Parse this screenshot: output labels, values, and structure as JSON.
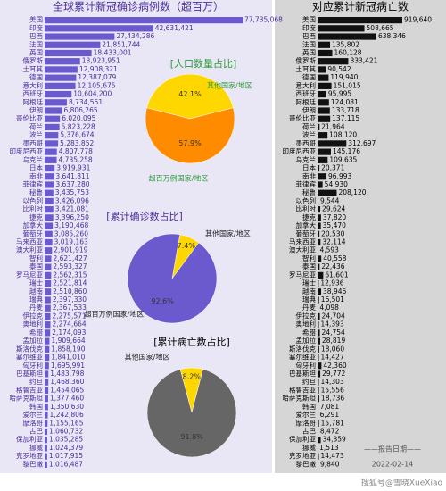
{
  "chart_data": [
    {
      "type": "barh",
      "title": "全球累计新冠确诊病例数（超百万）",
      "color": "#6a5acd",
      "categories": [
        "美国",
        "印度",
        "巴西",
        "法国",
        "英国",
        "俄罗斯",
        "土耳其",
        "德国",
        "意大利",
        "西班牙",
        "阿根廷",
        "伊朗",
        "哥伦比亚",
        "荷兰",
        "波兰",
        "墨西哥",
        "印度尼西亚",
        "乌克兰",
        "日本",
        "南非",
        "菲律宾",
        "秘鲁",
        "以色列",
        "比利时",
        "捷克",
        "加拿大",
        "葡萄牙",
        "马来西亚",
        "澳大利亚",
        "智利",
        "泰国",
        "罗马尼亚",
        "瑞士",
        "越南",
        "瑞典",
        "丹麦",
        "伊拉克",
        "奥地利",
        "希腊",
        "孟加拉",
        "斯洛伐克",
        "塞尔维亚",
        "匈牙利",
        "巴基斯坦",
        "约旦",
        "格鲁吉亚",
        "哈萨克斯坦",
        "韩国",
        "爱尔兰",
        "摩洛哥",
        "古巴",
        "保加利亚",
        "挪威",
        "克罗地亚",
        "黎巴嫩"
      ],
      "values": [
        77735068,
        42631421,
        27434286,
        21851744,
        18433001,
        13923951,
        12908321,
        12387079,
        12105675,
        10604200,
        8734551,
        6806265,
        6020095,
        5823228,
        5376674,
        5283852,
        4807778,
        4735258,
        3919931,
        3641811,
        3637280,
        3435753,
        3426096,
        3421081,
        3396250,
        3190468,
        3085260,
        3019163,
        2901919,
        2621427,
        2593327,
        2562315,
        2521814,
        2510860,
        2397330,
        2367533,
        2275571,
        2274664,
        2174093,
        1909664,
        1858190,
        1841010,
        1695991,
        1483798,
        1468360,
        1454065,
        1377460,
        1350630,
        1242806,
        1155165,
        1060732,
        1035285,
        1024379,
        1017915,
        1016487
      ],
      "value_labels": [
        "77,735,068",
        "42,631,421",
        "27,434,286",
        "21,851,744",
        "18,433,001",
        "13,923,951",
        "12,908,321",
        "12,387,079",
        "12,105,675",
        "10,604,200",
        "8,734,551",
        "6,806,265",
        "6,020,095",
        "5,823,228",
        "5,376,674",
        "5,283,852",
        "4,807,778",
        "4,735,258",
        "3,919,931",
        "3,641,811",
        "3,637,280",
        "3,435,753",
        "3,426,096",
        "3,421,081",
        "3,396,250",
        "3,190,468",
        "3,085,260",
        "3,019,163",
        "2,901,919",
        "2,621,427",
        "2,593,327",
        "2,562,315",
        "2,521,814",
        "2,510,860",
        "2,397,330",
        "2,367,533",
        "2,275,571",
        "2,274,664",
        "2,174,093",
        "1,909,664",
        "1,858,190",
        "1,841,010",
        "1,695,991",
        "1,483,798",
        "1,468,360",
        "1,454,065",
        "1,377,460",
        "1,350,630",
        "1,242,806",
        "1,155,165",
        "1,060,732",
        "1,035,285",
        "1,024,379",
        "1,017,915",
        "1,016,487"
      ]
    },
    {
      "type": "barh",
      "title": "对应累计新冠病亡数",
      "color": "#111111",
      "categories": [
        "美国",
        "印度",
        "巴西",
        "法国",
        "英国",
        "俄罗斯",
        "土耳其",
        "德国",
        "意大利",
        "西班牙",
        "阿根廷",
        "伊朗",
        "哥伦比亚",
        "荷兰",
        "波兰",
        "墨西哥",
        "印度尼西亚",
        "乌克兰",
        "日本",
        "南非",
        "菲律宾",
        "秘鲁",
        "以色列",
        "比利时",
        "捷克",
        "加拿大",
        "葡萄牙",
        "马来西亚",
        "澳大利亚",
        "智利",
        "泰国",
        "罗马尼亚",
        "瑞士",
        "越南",
        "瑞典",
        "丹麦",
        "伊拉克",
        "奥地利",
        "希腊",
        "孟加拉",
        "斯洛伐克",
        "塞尔维亚",
        "匈牙利",
        "巴基斯坦",
        "约旦",
        "格鲁吉亚",
        "哈萨克斯坦",
        "韩国",
        "爱尔兰",
        "摩洛哥",
        "古巴",
        "保加利亚",
        "挪威",
        "克罗地亚",
        "黎巴嫩"
      ],
      "values": [
        919640,
        508665,
        638346,
        135802,
        160128,
        333421,
        90542,
        119940,
        151015,
        95995,
        124081,
        133718,
        137115,
        21964,
        108120,
        312697,
        145176,
        109635,
        20371,
        96993,
        54930,
        208120,
        9544,
        29624,
        37820,
        35470,
        20530,
        32114,
        4593,
        40558,
        22436,
        61601,
        12936,
        38946,
        16501,
        4098,
        24704,
        14393,
        24754,
        28819,
        18060,
        14427,
        42360,
        29772,
        14303,
        15556,
        18736,
        7081,
        6291,
        15781,
        8472,
        34359,
        1513,
        14473,
        9840
      ],
      "value_labels": [
        "919,640",
        "508,665",
        "638,346",
        "135,802",
        "160,128",
        "333,421",
        "90,542",
        "119,940",
        "151,015",
        "95,995",
        "124,081",
        "133,718",
        "137,115",
        "21,964",
        "108,120",
        "312,697",
        "145,176",
        "109,635",
        "20,371",
        "96,993",
        "54,930",
        "208,120",
        "9,544",
        "29,624",
        "37,820",
        "35,470",
        "20,530",
        "32,114",
        "4,593",
        "40,558",
        "22,436",
        "61,601",
        "12,936",
        "38,946",
        "16,501",
        "4,098",
        "24,704",
        "14,393",
        "24,754",
        "28,819",
        "18,060",
        "14,427",
        "42,360",
        "29,772",
        "14,303",
        "15,556",
        "18,736",
        "7,081",
        "6,291",
        "15,781",
        "8,472",
        "34,359",
        "1,513",
        "14,473",
        "9,840"
      ]
    },
    {
      "type": "pie",
      "title": "[人口数量占比]",
      "categories": [
        "其他国家/地区",
        "超百万例国家/地区"
      ],
      "values": [
        42.1,
        57.9
      ],
      "value_labels": [
        "42.1%",
        "57.9%"
      ],
      "colors": [
        "#ffd700",
        "#ff8c00"
      ]
    },
    {
      "type": "pie",
      "title": "[累计确诊数占比]",
      "categories": [
        "其他国家/地区",
        "超百万例国家/地区"
      ],
      "values": [
        7.4,
        92.6
      ],
      "value_labels": [
        "7.4%",
        "92.6%"
      ],
      "colors": [
        "#ffd700",
        "#6a5acd"
      ]
    },
    {
      "type": "pie",
      "title": "[累计病亡数占比]",
      "categories": [
        "其他国家/地区",
        null
      ],
      "values": [
        8.2,
        91.8
      ],
      "value_labels": [
        "8.2%",
        "91.8%"
      ],
      "colors": [
        "#ffd700",
        "#666666"
      ]
    }
  ],
  "report_label": "——报告日期——",
  "report_date": "2022-02-14",
  "watermark": "搜狐号@雪晓XueXiao"
}
